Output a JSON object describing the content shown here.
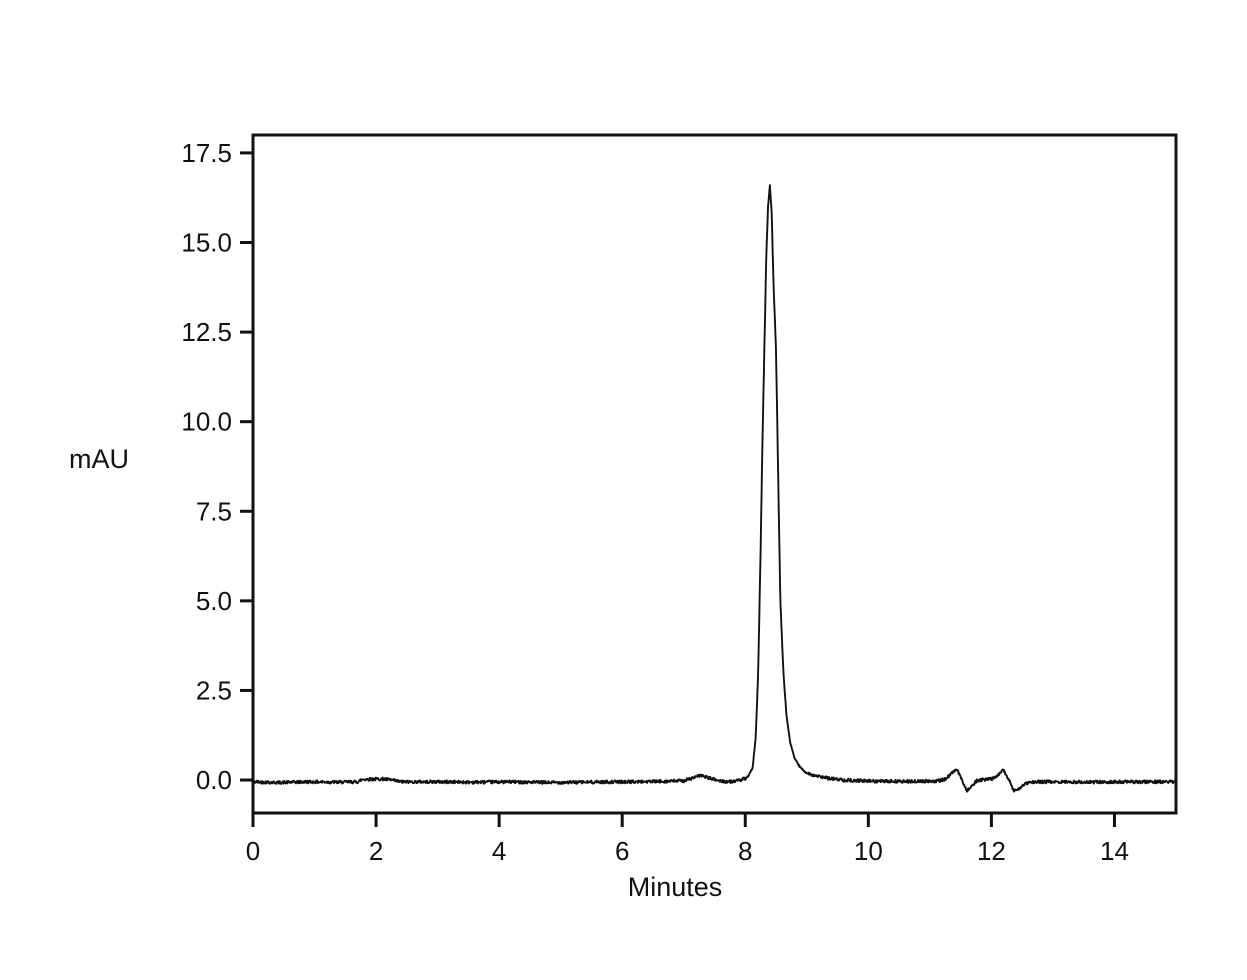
{
  "figure": {
    "background": "#ffffff",
    "text_color": "#111111"
  },
  "chart_data": {
    "type": "line",
    "title": "",
    "xlabel": "Minutes",
    "ylabel": "mAU",
    "xlim": [
      0,
      15
    ],
    "ylim": [
      -0.92,
      18.0
    ],
    "grid": false,
    "legend": false,
    "frame": "full-box",
    "line_color": "#111111",
    "x_ticks": {
      "values": [
        0,
        2,
        4,
        6,
        8,
        10,
        12,
        14
      ],
      "labels": [
        "0",
        "2",
        "4",
        "6",
        "8",
        "10",
        "12",
        "14"
      ]
    },
    "y_ticks": {
      "values": [
        0.0,
        2.5,
        5.0,
        7.5,
        10.0,
        12.5,
        15.0,
        17.5
      ],
      "labels": [
        "0.0",
        "2.5",
        "5.0",
        "7.5",
        "10.0",
        "12.5",
        "15.0",
        "17.5"
      ]
    },
    "peak_apex": {
      "x_minutes": 8.4,
      "y_mau": 16.6
    },
    "noise_amplitude_mau": 0.045,
    "series": [
      {
        "name": "detector-signal",
        "points": [
          [
            0.0,
            -0.05
          ],
          [
            0.4,
            -0.07
          ],
          [
            0.9,
            -0.05
          ],
          [
            1.4,
            -0.06
          ],
          [
            1.7,
            -0.05
          ],
          [
            1.78,
            0.02
          ],
          [
            2.1,
            0.03
          ],
          [
            2.25,
            0.0
          ],
          [
            2.4,
            -0.05
          ],
          [
            3.0,
            -0.05
          ],
          [
            3.6,
            -0.06
          ],
          [
            4.2,
            -0.05
          ],
          [
            4.8,
            -0.07
          ],
          [
            5.4,
            -0.06
          ],
          [
            6.0,
            -0.05
          ],
          [
            6.6,
            -0.04
          ],
          [
            7.0,
            -0.02
          ],
          [
            7.12,
            0.04
          ],
          [
            7.28,
            0.13
          ],
          [
            7.42,
            0.05
          ],
          [
            7.58,
            -0.02
          ],
          [
            7.72,
            -0.05
          ],
          [
            7.88,
            -0.02
          ],
          [
            8.0,
            0.04
          ],
          [
            8.05,
            0.08
          ],
          [
            8.12,
            0.35
          ],
          [
            8.17,
            1.2
          ],
          [
            8.21,
            3.0
          ],
          [
            8.25,
            6.5
          ],
          [
            8.28,
            9.5
          ],
          [
            8.31,
            12.0
          ],
          [
            8.34,
            14.5
          ],
          [
            8.37,
            16.0
          ],
          [
            8.4,
            16.6
          ],
          [
            8.43,
            15.8
          ],
          [
            8.46,
            13.8
          ],
          [
            8.5,
            12.0
          ],
          [
            8.53,
            9.0
          ],
          [
            8.57,
            5.0
          ],
          [
            8.62,
            3.0
          ],
          [
            8.67,
            1.8
          ],
          [
            8.73,
            1.05
          ],
          [
            8.8,
            0.62
          ],
          [
            8.88,
            0.38
          ],
          [
            8.98,
            0.22
          ],
          [
            9.12,
            0.12
          ],
          [
            9.35,
            0.05
          ],
          [
            9.6,
            0.0
          ],
          [
            10.0,
            -0.03
          ],
          [
            10.6,
            -0.04
          ],
          [
            11.1,
            -0.03
          ],
          [
            11.25,
            0.02
          ],
          [
            11.35,
            0.18
          ],
          [
            11.44,
            0.3
          ],
          [
            11.52,
            0.02
          ],
          [
            11.6,
            -0.3
          ],
          [
            11.68,
            -0.18
          ],
          [
            11.76,
            -0.02
          ],
          [
            11.9,
            0.02
          ],
          [
            12.02,
            0.04
          ],
          [
            12.12,
            0.16
          ],
          [
            12.19,
            0.3
          ],
          [
            12.28,
            0.02
          ],
          [
            12.36,
            -0.3
          ],
          [
            12.45,
            -0.25
          ],
          [
            12.55,
            -0.1
          ],
          [
            12.7,
            -0.05
          ],
          [
            13.1,
            -0.05
          ],
          [
            13.6,
            -0.06
          ],
          [
            14.1,
            -0.05
          ],
          [
            14.6,
            -0.05
          ],
          [
            15.0,
            -0.05
          ]
        ]
      }
    ]
  }
}
